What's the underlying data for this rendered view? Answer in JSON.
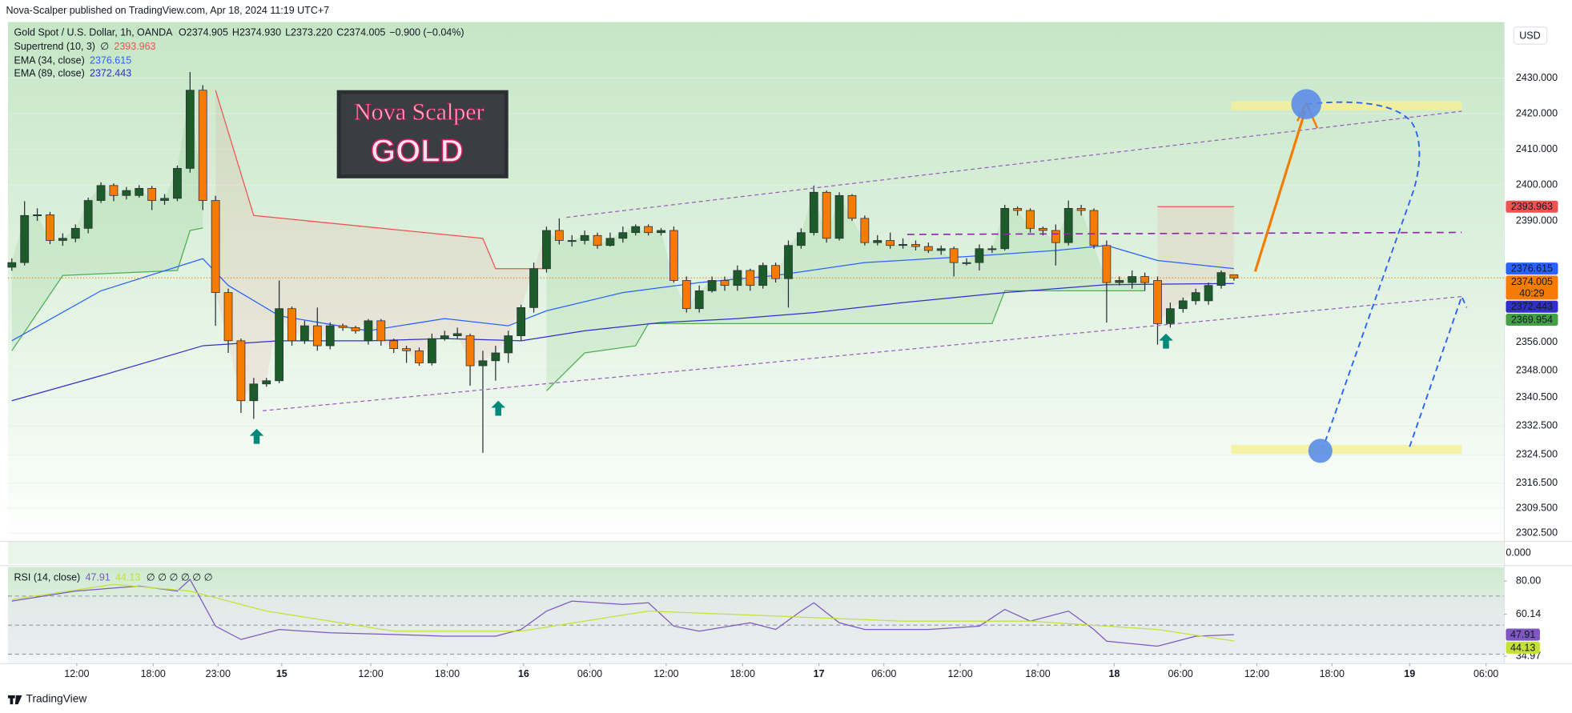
{
  "header": {
    "published": "Nova-Scalper published on TradingView.com, Apr 18, 2024 11:19 UTC+7",
    "currency": "USD",
    "footer": "TradingView"
  },
  "logo": {
    "line1": "Nova Scalper",
    "line2": "GOLD"
  },
  "empty_pane": {
    "label": "0.000"
  },
  "chart_data": {
    "type": "candlestick",
    "title": "Gold Spot / U.S. Dollar, 1h, OANDA",
    "ohlc_prefix": [
      "O",
      "H",
      "L",
      "C"
    ],
    "ohlc_value_labels": [
      "2374.905",
      "2374.930",
      "2373.220",
      "2374.005"
    ],
    "change": "−0.900 (−0.04%)",
    "countdown": "40:29",
    "up_color": "#1e5b2a",
    "down_color": "#f57c00",
    "open": [
      2377.0,
      2378.3,
      2391.5,
      2391.7,
      2384.5,
      2385.1,
      2387.9,
      2395.7,
      2399.9,
      2397.1,
      2397.1,
      2399.1,
      2395.7,
      2396.3,
      2404.7,
      2426.6,
      2395.7,
      2369.9,
      2356.4,
      2339.6,
      2344.3,
      2345.2,
      2365.4,
      2356.4,
      2360.6,
      2355.0,
      2360.6,
      2360.1,
      2356.4,
      2362.0,
      2356.4,
      2354.2,
      2353.6,
      2350.2,
      2357.0,
      2357.8,
      2357.8,
      2349.4,
      2350.8,
      2353.0,
      2357.8,
      2365.7,
      2376.6,
      2387.3,
      2384.5,
      2384.5,
      2385.9,
      2383.1,
      2385.1,
      2386.7,
      2388.4,
      2386.7,
      2387.3,
      2373.3,
      2365.4,
      2370.4,
      2373.3,
      2371.9,
      2376.1,
      2371.9,
      2377.5,
      2373.8,
      2383.1,
      2386.7,
      2398.0,
      2385.1,
      2397.1,
      2390.7,
      2383.9,
      2384.5,
      2383.1,
      2383.4,
      2382.8,
      2381.7,
      2382.2,
      2378.3,
      2378.3,
      2382.2,
      2382.2,
      2393.5,
      2392.9,
      2387.9,
      2387.3,
      2383.9,
      2393.5,
      2392.9,
      2383.1,
      2372.7,
      2372.7,
      2374.4,
      2373.3,
      2361.2,
      2365.4,
      2367.6,
      2367.6,
      2371.9,
      2374.905
    ],
    "high": [
      2379.5,
      2395.5,
      2393.5,
      2392.5,
      2386.5,
      2389.0,
      2396.5,
      2400.8,
      2400.5,
      2399.5,
      2400.0,
      2399.8,
      2397.5,
      2405.5,
      2431.7,
      2428.0,
      2397.0,
      2371.0,
      2357.0,
      2346.0,
      2346.0,
      2373.3,
      2366.0,
      2362.0,
      2365.7,
      2361.5,
      2361.2,
      2360.6,
      2362.5,
      2362.5,
      2357.0,
      2355.0,
      2354.5,
      2358.4,
      2359.2,
      2360.1,
      2358.4,
      2353.6,
      2355.0,
      2359.2,
      2366.5,
      2378.3,
      2388.4,
      2390.7,
      2386.0,
      2387.3,
      2386.7,
      2386.7,
      2388.4,
      2389.0,
      2389.0,
      2388.0,
      2388.4,
      2374.4,
      2371.9,
      2374.4,
      2374.4,
      2377.5,
      2376.6,
      2378.3,
      2378.3,
      2384.5,
      2387.9,
      2399.9,
      2398.5,
      2398.0,
      2397.5,
      2391.5,
      2386.0,
      2386.7,
      2385.1,
      2384.5,
      2383.9,
      2383.1,
      2382.8,
      2379.5,
      2383.4,
      2383.1,
      2394.5,
      2394.0,
      2393.5,
      2388.4,
      2389.0,
      2395.7,
      2394.5,
      2393.5,
      2384.5,
      2374.4,
      2376.1,
      2375.5,
      2374.4,
      2367.1,
      2368.5,
      2371.0,
      2372.7,
      2376.1,
      2374.93
    ],
    "low": [
      2376.0,
      2377.5,
      2390.0,
      2383.5,
      2383.0,
      2384.0,
      2386.5,
      2395.0,
      2395.5,
      2396.0,
      2396.5,
      2393.0,
      2394.5,
      2395.5,
      2403.5,
      2393.0,
      2360.6,
      2353.0,
      2336.2,
      2334.5,
      2343.5,
      2344.5,
      2355.0,
      2355.5,
      2353.6,
      2354.0,
      2359.2,
      2358.4,
      2355.3,
      2355.0,
      2353.0,
      2350.2,
      2349.4,
      2349.5,
      2356.4,
      2357.0,
      2343.8,
      2325.0,
      2345.2,
      2350.2,
      2356.4,
      2364.3,
      2375.5,
      2383.4,
      2382.8,
      2383.4,
      2382.2,
      2382.8,
      2383.9,
      2385.9,
      2385.9,
      2385.9,
      2372.7,
      2364.3,
      2364.3,
      2369.9,
      2370.4,
      2370.4,
      2370.4,
      2371.0,
      2372.7,
      2365.7,
      2382.2,
      2385.9,
      2383.9,
      2384.5,
      2390.0,
      2383.1,
      2383.1,
      2382.2,
      2382.2,
      2381.7,
      2381.0,
      2380.5,
      2374.4,
      2377.5,
      2376.1,
      2381.0,
      2381.7,
      2391.5,
      2386.7,
      2385.9,
      2377.5,
      2383.1,
      2391.5,
      2382.2,
      2361.5,
      2371.9,
      2371.0,
      2370.4,
      2355.3,
      2360.1,
      2364.3,
      2366.5,
      2366.5,
      2371.0,
      2373.22
    ],
    "close": [
      2378.3,
      2391.5,
      2391.7,
      2384.5,
      2385.1,
      2387.9,
      2395.7,
      2399.9,
      2397.1,
      2398.5,
      2399.1,
      2395.7,
      2396.3,
      2404.7,
      2426.6,
      2395.7,
      2369.9,
      2356.4,
      2339.6,
      2344.3,
      2345.2,
      2365.4,
      2356.4,
      2360.6,
      2355.0,
      2360.6,
      2360.1,
      2359.2,
      2362.0,
      2356.4,
      2354.2,
      2353.6,
      2350.2,
      2357.0,
      2357.8,
      2358.4,
      2349.4,
      2350.8,
      2353.0,
      2357.8,
      2365.7,
      2376.6,
      2387.3,
      2384.5,
      2384.5,
      2385.9,
      2383.1,
      2385.1,
      2386.7,
      2388.4,
      2386.7,
      2387.3,
      2373.3,
      2365.4,
      2370.4,
      2373.3,
      2371.9,
      2376.1,
      2371.9,
      2377.5,
      2373.8,
      2383.1,
      2386.7,
      2398.0,
      2385.1,
      2397.1,
      2390.7,
      2383.9,
      2384.5,
      2383.1,
      2383.4,
      2382.8,
      2381.7,
      2382.2,
      2378.3,
      2378.3,
      2382.2,
      2382.2,
      2393.5,
      2392.9,
      2387.9,
      2387.3,
      2383.9,
      2393.5,
      2392.9,
      2383.1,
      2372.7,
      2373.3,
      2374.4,
      2372.7,
      2361.2,
      2365.4,
      2367.6,
      2369.9,
      2371.9,
      2375.5,
      2374.005
    ],
    "xlim": [
      -0.3,
      117.2
    ],
    "xticks": [
      {
        "value": 5.1,
        "label": "12:00"
      },
      {
        "value": 11.1,
        "label": "18:00"
      },
      {
        "value": 16.2,
        "label": "23:00"
      },
      {
        "value": 21.2,
        "label": "15"
      },
      {
        "value": 28.2,
        "label": "12:00"
      },
      {
        "value": 34.2,
        "label": "18:00"
      },
      {
        "value": 40.2,
        "label": "16"
      },
      {
        "value": 45.4,
        "label": "06:00"
      },
      {
        "value": 51.4,
        "label": "12:00"
      },
      {
        "value": 57.4,
        "label": "18:00"
      },
      {
        "value": 63.4,
        "label": "17"
      },
      {
        "value": 68.5,
        "label": "06:00"
      },
      {
        "value": 74.5,
        "label": "12:00"
      },
      {
        "value": 80.6,
        "label": "18:00"
      },
      {
        "value": 86.6,
        "label": "18"
      },
      {
        "value": 91.8,
        "label": "06:00"
      },
      {
        "value": 97.8,
        "label": "12:00"
      },
      {
        "value": 103.7,
        "label": "18:00"
      },
      {
        "value": 109.8,
        "label": "19"
      },
      {
        "value": 115.8,
        "label": "06:00"
      }
    ],
    "ylim": [
      2300.3,
      2445.7
    ],
    "yticks": [
      {
        "value": 2430,
        "label": "2430.000"
      },
      {
        "value": 2420,
        "label": "2420.000"
      },
      {
        "value": 2410,
        "label": "2410.000"
      },
      {
        "value": 2400,
        "label": "2400.000"
      },
      {
        "value": 2390,
        "label": "2390.000"
      },
      {
        "value": 2356,
        "label": "2356.000"
      },
      {
        "value": 2348,
        "label": "2348.000"
      },
      {
        "value": 2340.5,
        "label": "2340.500"
      },
      {
        "value": 2332.5,
        "label": "2332.500"
      },
      {
        "value": 2324.5,
        "label": "2324.500"
      },
      {
        "value": 2316.5,
        "label": "2316.500"
      },
      {
        "value": 2309.5,
        "label": "2309.500"
      },
      {
        "value": 2302.5,
        "label": "2302.500"
      }
    ],
    "price_label": {
      "value": 2369.954,
      "color": "#43a047"
    },
    "supertrend": {
      "name": "Supertrend (10, 3)",
      "flag": "∅",
      "segments": [
        {
          "color": "#4caf50",
          "x": [
            0,
            4,
            13,
            14,
            15
          ],
          "values": [
            2353.6,
            2374.7,
            2376.1,
            2387.3,
            2388.0
          ]
        },
        {
          "color": "#ef5350",
          "x": [
            16,
            19,
            37,
            38,
            42
          ],
          "values": [
            2426.6,
            2391.5,
            2385.1,
            2376.6,
            2376.6
          ]
        },
        {
          "color": "#4caf50",
          "x": [
            42,
            45,
            49,
            50,
            77,
            78,
            89
          ],
          "values": [
            2342.4,
            2353.0,
            2355.0,
            2361.2,
            2361.2,
            2370.4,
            2370.4
          ]
        },
        {
          "color": "#ef5350",
          "x": [
            90,
            96
          ],
          "values": [
            2393.963,
            2393.963
          ]
        }
      ]
    },
    "series": [
      {
        "name": "EMA (34, close)",
        "color": "#2962ff",
        "x": [
          0,
          7,
          15,
          17,
          21,
          28,
          34,
          39,
          42,
          48,
          54,
          60,
          67,
          75,
          82,
          86,
          90,
          96
        ],
        "values": [
          2356.4,
          2370.4,
          2379.4,
          2371.9,
          2363.4,
          2359.2,
          2362.6,
          2360.6,
          2364.8,
          2369.9,
          2372.7,
          2374.7,
          2378.3,
          2380.0,
          2381.7,
          2383.1,
          2378.9,
          2376.615
        ]
      },
      {
        "name": "EMA (89, close)",
        "color": "#3030c8",
        "x": [
          0,
          7,
          15,
          21,
          28,
          34,
          40,
          45,
          51,
          57,
          63,
          70,
          78,
          86,
          96
        ],
        "values": [
          2339.6,
          2346.6,
          2355.0,
          2356.4,
          2356.4,
          2357.0,
          2356.4,
          2359.2,
          2361.5,
          2362.6,
          2364.3,
          2367.1,
          2369.9,
          2372.1,
          2372.443
        ]
      }
    ]
  },
  "rsi": {
    "type": "line",
    "title": "RSI (14, close)",
    "flags": "∅ ∅ ∅ ∅ ∅ ∅",
    "ylim": [
      30.8,
      88.4
    ],
    "yticks": [
      {
        "value": 80,
        "label": "80.00"
      },
      {
        "value": 60.14,
        "label": "60.14"
      },
      {
        "value": 34.97,
        "label": "34.97"
      }
    ],
    "series": [
      {
        "color": "#7e57c2",
        "x": [
          0,
          5,
          10,
          13,
          14,
          16,
          18,
          21,
          25,
          30,
          34,
          38,
          40,
          42,
          44,
          48,
          50,
          52,
          54,
          58,
          60,
          62,
          63,
          65,
          67,
          72,
          76,
          78,
          80,
          83,
          85,
          86,
          90,
          93,
          96
        ],
        "values": [
          68,
          74,
          77,
          74,
          81,
          53,
          45,
          51,
          49,
          48,
          47,
          47,
          51,
          62,
          68,
          66,
          67,
          53,
          50,
          55,
          51,
          62,
          67,
          55,
          51,
          51,
          53,
          63,
          56,
          62,
          51,
          44,
          41,
          47,
          47.91
        ]
      },
      {
        "color": "#c6e03a",
        "x": [
          0,
          8,
          14,
          20,
          30,
          40,
          50,
          60,
          70,
          80,
          90,
          96
        ],
        "values": [
          69,
          78,
          74,
          62,
          50,
          50,
          62,
          59,
          56,
          56,
          51,
          44.13
        ]
      }
    ]
  }
}
